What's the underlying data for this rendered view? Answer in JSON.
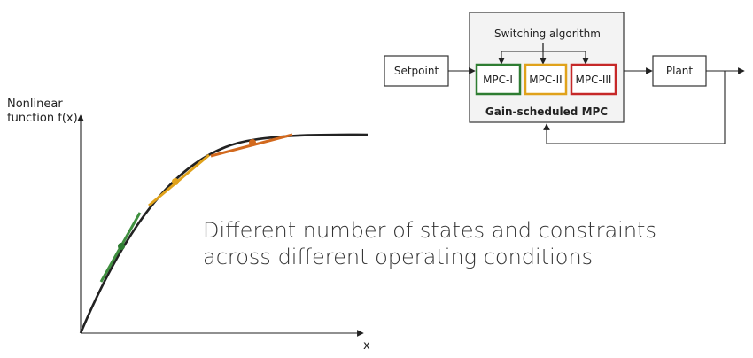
{
  "plot": {
    "ylabel_line1": "Nonlinear",
    "ylabel_line2": "function f(x)",
    "xlabel": "x"
  },
  "diagram": {
    "switching_label": "Switching algorithm",
    "setpoint_label": "Setpoint",
    "mpc1_label": "MPC-I",
    "mpc2_label": "MPC-II",
    "mpc3_label": "MPC-III",
    "plant_label": "Plant",
    "gain_scheduled_label": "Gain-scheduled MPC"
  },
  "caption": {
    "line1": "Different number of states and constraints",
    "line2": "across different operating conditions"
  },
  "colors": {
    "mpc1": "#2e7d32",
    "mpc2": "#e0a21b",
    "mpc3": "#c62828",
    "curve": "#222222",
    "tangent1": "#3f8f3f",
    "tangent2": "#e0a21b",
    "tangent3": "#d2691e"
  }
}
